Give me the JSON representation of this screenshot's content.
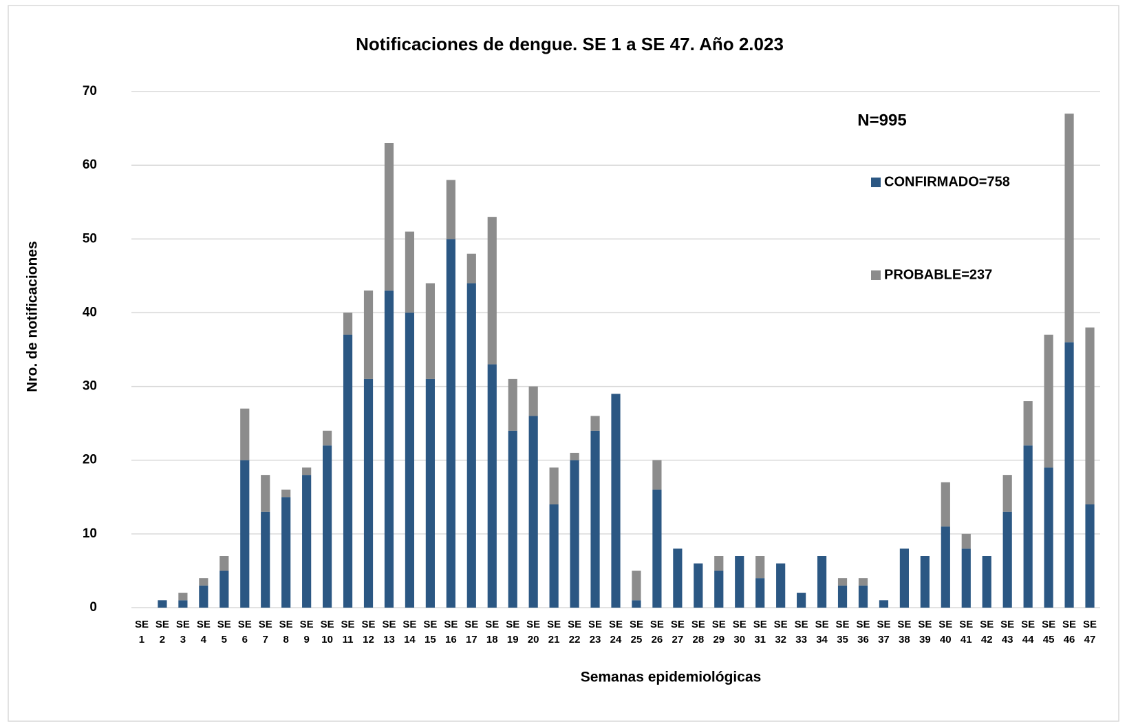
{
  "chart_data": {
    "type": "stacked_bar",
    "title": "Notificaciones de dengue. SE 1 a SE 47. Año 2.023",
    "annotation": "N=995",
    "x_label": "Semanas epidemiológicas",
    "y_label": "Nro. de notificaciones",
    "categories": [
      "SE 1",
      "SE 2",
      "SE 3",
      "SE 4",
      "SE 5",
      "SE 6",
      "SE 7",
      "SE 8",
      "SE 9",
      "SE 10",
      "SE 11",
      "SE 12",
      "SE 13",
      "SE 14",
      "SE 15",
      "SE 16",
      "SE 17",
      "SE 18",
      "SE 19",
      "SE 20",
      "SE 21",
      "SE 22",
      "SE 23",
      "SE 24",
      "SE 25",
      "SE 26",
      "SE 27",
      "SE 28",
      "SE 29",
      "SE 30",
      "SE 31",
      "SE 32",
      "SE 33",
      "SE 34",
      "SE 35",
      "SE 36",
      "SE 37",
      "SE 38",
      "SE 39",
      "SE 40",
      "SE 41",
      "SE 42",
      "SE 43",
      "SE 44",
      "SE 45",
      "SE 46",
      "SE 47"
    ],
    "series": [
      {
        "name": "CONFIRMADO=758",
        "color": "#2b5783",
        "values": [
          0,
          1,
          1,
          3,
          5,
          20,
          13,
          15,
          18,
          22,
          37,
          31,
          43,
          40,
          31,
          50,
          44,
          33,
          24,
          26,
          14,
          20,
          24,
          29,
          1,
          16,
          8,
          6,
          5,
          7,
          4,
          6,
          2,
          7,
          3,
          3,
          1,
          8,
          7,
          11,
          8,
          7,
          13,
          22,
          19,
          36,
          14
        ]
      },
      {
        "name": "PROBABLE=237",
        "color": "#8c8c8c",
        "values": [
          0,
          0,
          1,
          1,
          2,
          7,
          5,
          1,
          1,
          2,
          3,
          12,
          20,
          11,
          13,
          8,
          4,
          20,
          7,
          4,
          5,
          1,
          2,
          0,
          4,
          4,
          0,
          0,
          2,
          0,
          3,
          0,
          0,
          0,
          1,
          1,
          0,
          0,
          0,
          6,
          2,
          0,
          5,
          6,
          18,
          31,
          24
        ]
      }
    ],
    "ylim": [
      0,
      70
    ],
    "yticks": [
      0,
      10,
      20,
      30,
      40,
      50,
      60,
      70
    ],
    "grid": true
  }
}
